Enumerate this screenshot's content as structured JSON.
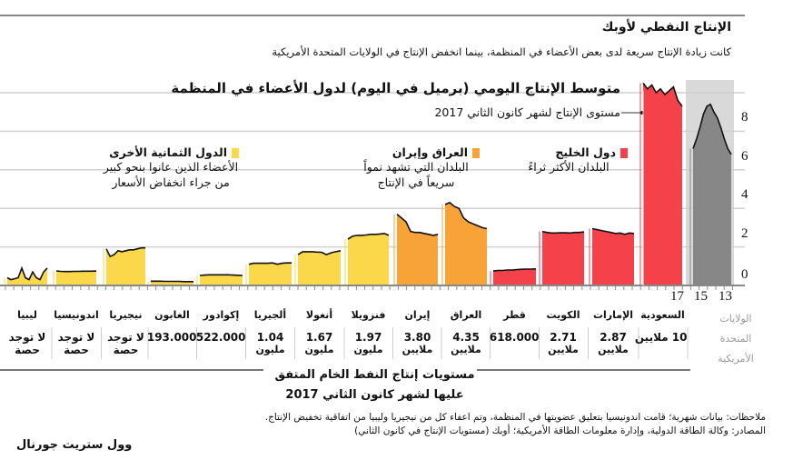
{
  "header": {
    "title": "الإنتاج النفطي لأوبك",
    "subtitle": "كانت زيادة الإنتاج سريعة لدى بعض الأعضاء في المنظمة، بينما انخفض الإنتاج في الولايات المتحدة الأمريكية"
  },
  "chart_data": {
    "type": "area",
    "title": "متوسط الإنتاج اليومي (برميل في اليوم) لدول الأعضاء في المنظمة",
    "annotation": "مستوى الإنتاج لشهر كانون الثاني 2017",
    "ylabel": "",
    "yticks": [
      "8",
      "6",
      "4",
      "2",
      "0"
    ],
    "ylim": [
      0,
      10
    ],
    "grid": true,
    "us_xticks": [
      "17",
      "15",
      "13"
    ],
    "colors": {
      "others": "#fbd74a",
      "iraq_iran": "#f7a338",
      "gulf": "#f5424a",
      "us": "#878787",
      "us_bg": "#d9d9d9"
    },
    "legend": [
      {
        "title": "الدول الثمانية الأخرى",
        "desc": "الأعضاء الذين عانوا بنحو كبير من جراء انخفاض الأسعار",
        "color": "#fbd74a"
      },
      {
        "title": "العراق وإيران",
        "desc": "البلدان التي تشهد نمواً سريعاً في الإنتاج",
        "color": "#f7a338"
      },
      {
        "title": "دول الخليج",
        "desc": "البلدان الأكثر ثراءً",
        "color": "#f5424a"
      }
    ],
    "series": [
      {
        "name": "ليبيا",
        "group": "others",
        "quota": "لا توجد حصة",
        "values": [
          0.4,
          0.3,
          0.35,
          0.4,
          0.9,
          0.4,
          0.3,
          0.7,
          0.4,
          0.3,
          0.7,
          0.9
        ]
      },
      {
        "name": "اندونيسيا",
        "group": "others",
        "quota": "لا توجد حصة",
        "values": [
          0.75,
          0.73,
          0.72,
          0.72,
          0.73,
          0.73,
          0.74,
          0.74,
          0.74,
          0.75
        ]
      },
      {
        "name": "نيجيريا",
        "group": "others",
        "quota": "لا توجد حصة",
        "values": [
          1.9,
          1.5,
          1.6,
          1.8,
          1.75,
          1.8,
          1.85,
          1.85,
          1.9,
          1.95,
          1.95
        ]
      },
      {
        "name": "الغابون",
        "group": "others",
        "quota": "193.000",
        "values": [
          0.22,
          0.22,
          0.22,
          0.21,
          0.21,
          0.21,
          0.21,
          0.2,
          0.2,
          0.2
        ]
      },
      {
        "name": "إكوادور",
        "group": "others",
        "quota": "522.000",
        "values": [
          0.52,
          0.54,
          0.55,
          0.55,
          0.55,
          0.55,
          0.55,
          0.54,
          0.53,
          0.52
        ]
      },
      {
        "name": "ألجيريا",
        "group": "others",
        "quota": "1.04 مليون",
        "values": [
          1.1,
          1.15,
          1.15,
          1.15,
          1.15,
          1.17,
          1.1,
          1.15,
          1.17,
          1.17
        ]
      },
      {
        "name": "أنغولا",
        "group": "others",
        "quota": "1.67 مليون",
        "values": [
          1.6,
          1.75,
          1.75,
          1.75,
          1.73,
          1.72,
          1.6,
          1.7,
          1.75,
          1.8
        ]
      },
      {
        "name": "فنزويلا",
        "group": "others",
        "quota": "1.97 مليون",
        "values": [
          2.4,
          2.55,
          2.6,
          2.6,
          2.62,
          2.65,
          2.65,
          2.67,
          2.7,
          2.6
        ]
      },
      {
        "name": "إيران",
        "group": "iraq_iran",
        "quota": "3.80 ملايين",
        "values": [
          3.7,
          3.5,
          3.3,
          2.8,
          2.75,
          2.75,
          2.7,
          2.65,
          2.6,
          2.65
        ]
      },
      {
        "name": "العراق",
        "group": "iraq_iran",
        "quota": "4.35 ملايين",
        "values": [
          4.2,
          4.3,
          4.1,
          4.0,
          3.5,
          3.3,
          3.2,
          3.1,
          3.0,
          2.95
        ]
      },
      {
        "name": "قطر",
        "group": "gulf",
        "quota": "618.000",
        "values": [
          0.75,
          0.78,
          0.78,
          0.8,
          0.8,
          0.82,
          0.84,
          0.85,
          0.85,
          0.86
        ]
      },
      {
        "name": "الكويت",
        "group": "gulf",
        "quota": "2.71 ملايين",
        "values": [
          2.8,
          2.75,
          2.72,
          2.72,
          2.73,
          2.73,
          2.72,
          2.75,
          2.75,
          2.78
        ]
      },
      {
        "name": "الإمارات",
        "group": "gulf",
        "quota": "2.87 ملايين",
        "values": [
          2.95,
          2.9,
          2.85,
          2.8,
          2.75,
          2.7,
          2.72,
          2.65,
          2.72,
          2.7
        ]
      },
      {
        "name": "السعودية",
        "group": "gulf",
        "quota": "10 ملايين",
        "values": [
          10.5,
          10.2,
          10.4,
          10.0,
          10.2,
          9.9,
          10.1,
          10.3,
          9.6,
          9.3
        ]
      },
      {
        "name": "الولايات المتحدة الأمريكية",
        "group": "us",
        "quota": "",
        "values": [
          7.1,
          7.6,
          8.2,
          8.9,
          9.3,
          9.4,
          9.0,
          8.7,
          8.2,
          7.6,
          7.1,
          6.8
        ]
      }
    ]
  },
  "table_title": "مستويات إنتاج النفط الخام المتفق عليها لشهر كانون الثاني 2017",
  "notes": "ملاحظات: بيانات شهرية؛ قامت اندونيسيا بتعليق عضويتها في المنظمة، وتم اعفاء كل من نيجيريا وليبيا من اتفاقية تخفيض الإنتاج.",
  "source": "المصادر: وكالة الطاقة الدولية، وإدارة معلومات الطاقة الأمريكية؛ أوبك (مستويات الإنتاج في كانون الثاني)",
  "publisher": "وول ستريت جورنال"
}
